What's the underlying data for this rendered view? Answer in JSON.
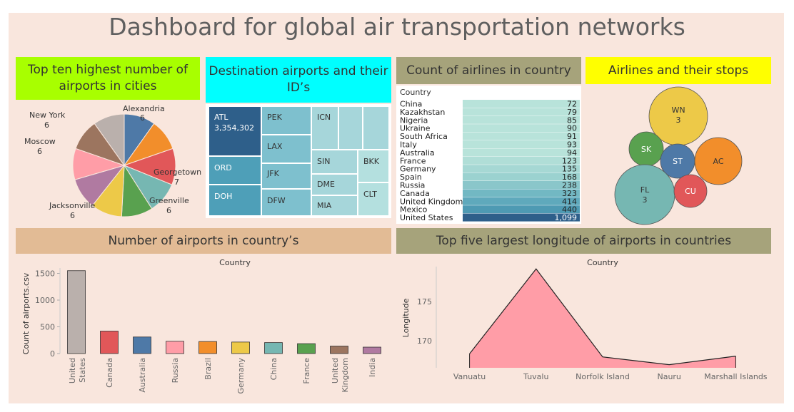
{
  "title": "Dashboard for global air transportation networks",
  "colors": {
    "tableau": [
      "#4e79a7",
      "#f28e2b",
      "#e15759",
      "#76b7b2",
      "#59a14f",
      "#edc948",
      "#b07aa1",
      "#ff9da7",
      "#9c755f",
      "#bab0ac"
    ]
  },
  "pie": {
    "header": "Top ten highest number of airports in cities",
    "header_color": "#a8ff00",
    "slices": [
      {
        "label": "Alexandria",
        "value": 6,
        "color": "#4e79a7"
      },
      {
        "label": "",
        "value": 6,
        "color": "#f28e2b"
      },
      {
        "label": "Georgetown",
        "value": 7,
        "color": "#e15759"
      },
      {
        "label": "",
        "value": 6,
        "color": "#76b7b2"
      },
      {
        "label": "Greenville",
        "value": 6,
        "color": "#59a14f"
      },
      {
        "label": "",
        "value": 6,
        "color": "#edc948"
      },
      {
        "label": "Jacksonville",
        "value": 6,
        "color": "#b07aa1"
      },
      {
        "label": "Moscow",
        "value": 6,
        "color": "#ff9da7"
      },
      {
        "label": "",
        "value": 6,
        "color": "#9c755f"
      },
      {
        "label": "New York",
        "value": 6,
        "color": "#bab0ac"
      }
    ],
    "outside_labels": [
      {
        "label": "Alexandria",
        "value": "6"
      },
      {
        "label": "Georgetown",
        "value": "7"
      },
      {
        "label": "Greenville",
        "value": "6"
      },
      {
        "label": "Jacksonville",
        "value": "6"
      },
      {
        "label": "Moscow",
        "value": "6"
      },
      {
        "label": "New York",
        "value": "6"
      }
    ]
  },
  "treemap": {
    "header": "Destination airports and their ID’s",
    "header_color": "#00ffff",
    "cells": [
      {
        "label": "ATL",
        "value": "3,354,302"
      },
      {
        "label": "PEK"
      },
      {
        "label": "ICN"
      },
      {
        "label": "LAX"
      },
      {
        "label": "ORD"
      },
      {
        "label": "JFK"
      },
      {
        "label": "SIN"
      },
      {
        "label": "BKK"
      },
      {
        "label": "DME"
      },
      {
        "label": "DOH"
      },
      {
        "label": "DFW"
      },
      {
        "label": "MIA"
      },
      {
        "label": "CLT"
      },
      {
        "label": ""
      },
      {
        "label": ""
      }
    ]
  },
  "airlines_table": {
    "header": "Count of airlines in country",
    "header_color": "#a6a37b",
    "column_header": "Country",
    "rows": [
      {
        "country": "China",
        "count": "72"
      },
      {
        "country": "Kazakhstan",
        "count": "79"
      },
      {
        "country": "Nigeria",
        "count": "85"
      },
      {
        "country": "Ukraine",
        "count": "90"
      },
      {
        "country": "South Africa",
        "count": "91"
      },
      {
        "country": "Italy",
        "count": "93"
      },
      {
        "country": "Australia",
        "count": "94"
      },
      {
        "country": "France",
        "count": "123"
      },
      {
        "country": "Germany",
        "count": "135"
      },
      {
        "country": "Spain",
        "count": "168"
      },
      {
        "country": "Russia",
        "count": "238"
      },
      {
        "country": "Canada",
        "count": "323"
      },
      {
        "country": "United Kingdom",
        "count": "414"
      },
      {
        "country": "Mexico",
        "count": "440"
      },
      {
        "country": "United States",
        "count": "1,099"
      }
    ]
  },
  "bubbles": {
    "header": "Airlines and their stops",
    "header_color": "#ffff00",
    "items": [
      {
        "label": "WN",
        "value": "3",
        "color": "#edc948"
      },
      {
        "label": "SK",
        "value": "",
        "color": "#59a14f"
      },
      {
        "label": "ST",
        "value": "",
        "color": "#4e79a7"
      },
      {
        "label": "AC",
        "value": "",
        "color": "#f28e2b"
      },
      {
        "label": "FL",
        "value": "3",
        "color": "#76b7b2"
      },
      {
        "label": "CU",
        "value": "",
        "color": "#e15759"
      }
    ]
  },
  "chart_data": [
    {
      "type": "bar",
      "title": "Number of airports in country’s",
      "header_color": "#e2bb95",
      "xlabel": "Country",
      "ylabel": "Count of airports.csv",
      "categories": [
        "United States",
        "Canada",
        "Australia",
        "Russia",
        "Brazil",
        "Germany",
        "China",
        "France",
        "United Kingdom",
        "India"
      ],
      "category_lines": [
        [
          "United",
          "States"
        ],
        [
          "Canada"
        ],
        [
          "Australia"
        ],
        [
          "Russia"
        ],
        [
          "Brazil"
        ],
        [
          "Germany"
        ],
        [
          "China"
        ],
        [
          "France"
        ],
        [
          "United",
          "Kingdom"
        ],
        [
          "India"
        ]
      ],
      "values": [
        1550,
        420,
        310,
        230,
        225,
        215,
        205,
        185,
        140,
        120
      ],
      "colors": [
        "#bab0ac",
        "#e15759",
        "#4e79a7",
        "#ff9da7",
        "#f28e2b",
        "#edc948",
        "#76b7b2",
        "#59a14f",
        "#9c755f",
        "#b07aa1"
      ],
      "yticks": [
        0,
        500,
        1000,
        1500
      ],
      "ylim": [
        0,
        1600
      ]
    },
    {
      "type": "area",
      "title": "Top five largest longitude of airports in countries",
      "header_color": "#a6a37b",
      "xlabel": "Country",
      "ylabel": "Longitude",
      "categories": [
        "Vanuatu",
        "Tuvalu",
        "Norfolk Island",
        "Nauru",
        "Marshall Islands"
      ],
      "values": [
        168.3,
        179.2,
        167.9,
        166.9,
        168.0
      ],
      "yticks": [
        170,
        175
      ],
      "ylim": [
        166.5,
        179.5
      ],
      "color": "#ff9da7"
    },
    {
      "type": "pie",
      "title": "Top ten highest number of airports in cities",
      "categories": [
        "Alexandria",
        "",
        "Georgetown",
        "",
        "Greenville",
        "",
        "Jacksonville",
        "Moscow",
        "",
        "New York"
      ],
      "values": [
        6,
        6,
        7,
        6,
        6,
        6,
        6,
        6,
        6,
        6
      ]
    }
  ]
}
